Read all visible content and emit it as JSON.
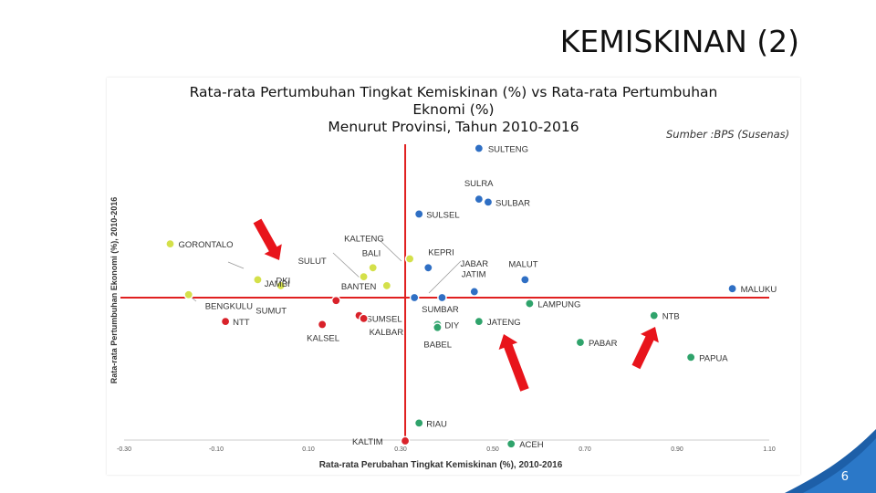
{
  "slide": {
    "title": "KEMISKINAN (2)",
    "page_number": "6"
  },
  "chart_data": {
    "type": "scatter",
    "title_lines": [
      "Rata-rata Pertumbuhan Tingkat Kemiskinan (%) vs Rata-rata Pertumbuhan",
      "Eknomi (%)",
      "Menurut Provinsi, Tahun 2010-2016"
    ],
    "source": "Sumber :BPS (Susenas)",
    "xlabel": "Rata-rata Perubahan Tingkat Kemiskinan (%), 2010-2016",
    "ylabel": "Rata-rata Pertumbuhan Ekonomi (%), 2010-2016",
    "xlim": [
      -0.3,
      1.1
    ],
    "x_ticks": [
      "-0.30",
      "-0.10",
      "0.10",
      "0.30",
      "0.50",
      "0.70",
      "0.90",
      "1.10"
    ],
    "reference_lines": {
      "x": 0.31,
      "y": 0
    },
    "colors": {
      "yellow": "#d4e04a",
      "red": "#d9222a",
      "blue": "#2f6fc4",
      "green": "#2fa36b",
      "line": "#e02020",
      "arrow": "#e8141b",
      "corner": "#1d5fa8"
    },
    "points": [
      {
        "label": "SULTENG",
        "x": 0.47,
        "y": 5.0,
        "group": "blue"
      },
      {
        "label": "SULRA",
        "x": 0.47,
        "y": 3.3,
        "group": "blue"
      },
      {
        "label": "SULBAR",
        "x": 0.49,
        "y": 3.2,
        "group": "blue"
      },
      {
        "label": "SULSEL",
        "x": 0.34,
        "y": 2.8,
        "group": "blue"
      },
      {
        "label": "GORONTALO",
        "x": -0.2,
        "y": 1.8,
        "group": "yellow"
      },
      {
        "label": "KALTENG",
        "x": 0.32,
        "y": 1.3,
        "group": "yellow"
      },
      {
        "label": "KEPRI",
        "x": 0.36,
        "y": 1.0,
        "group": "blue"
      },
      {
        "label": "BALI",
        "x": 0.24,
        "y": 1.0,
        "group": "yellow"
      },
      {
        "label": "SULUT",
        "x": 0.22,
        "y": 0.7,
        "group": "yellow"
      },
      {
        "label": "DKI",
        "x": -0.01,
        "y": 0.6,
        "group": "yellow"
      },
      {
        "label": "JAMBI",
        "x": 0.04,
        "y": 0.4,
        "group": "yellow"
      },
      {
        "label": "BANTEN",
        "x": 0.27,
        "y": 0.4,
        "group": "yellow"
      },
      {
        "label": "JABAR",
        "x": 0.39,
        "y": 0.0,
        "group": "blue"
      },
      {
        "label": "JATIM",
        "x": 0.46,
        "y": 0.2,
        "group": "blue"
      },
      {
        "label": "MALUT",
        "x": 0.57,
        "y": 0.6,
        "group": "blue"
      },
      {
        "label": "MALUKU",
        "x": 1.02,
        "y": 0.3,
        "group": "blue"
      },
      {
        "label": "BENGKULU",
        "x": -0.16,
        "y": 0.1,
        "group": "yellow"
      },
      {
        "label": "SUMUT",
        "x": 0.16,
        "y": -0.1,
        "group": "red"
      },
      {
        "label": "NTT",
        "x": -0.08,
        "y": -0.8,
        "group": "red"
      },
      {
        "label": "SUMSEL",
        "x": 0.21,
        "y": -0.6,
        "group": "red"
      },
      {
        "label": "KALSEL",
        "x": 0.13,
        "y": -0.9,
        "group": "red"
      },
      {
        "label": "KALBAR",
        "x": 0.22,
        "y": -0.7,
        "group": "red"
      },
      {
        "label": "SUMBAR",
        "x": 0.33,
        "y": 0.0,
        "group": "blue"
      },
      {
        "label": "DIY",
        "x": 0.38,
        "y": -0.9,
        "group": "green"
      },
      {
        "label": "BABEL",
        "x": 0.38,
        "y": -1.0,
        "group": "green"
      },
      {
        "label": "JATENG",
        "x": 0.47,
        "y": -0.8,
        "group": "green"
      },
      {
        "label": "LAMPUNG",
        "x": 0.58,
        "y": -0.2,
        "group": "green"
      },
      {
        "label": "NTB",
        "x": 0.85,
        "y": -0.6,
        "group": "green"
      },
      {
        "label": "PABAR",
        "x": 0.69,
        "y": -1.5,
        "group": "green"
      },
      {
        "label": "PAPUA",
        "x": 0.93,
        "y": -2.0,
        "group": "green"
      },
      {
        "label": "RIAU",
        "x": 0.34,
        "y": -4.2,
        "group": "green"
      },
      {
        "label": "KALTIM",
        "x": 0.31,
        "y": -4.8,
        "group": "red"
      },
      {
        "label": "ACEH",
        "x": 0.54,
        "y": -4.9,
        "group": "green"
      }
    ]
  }
}
